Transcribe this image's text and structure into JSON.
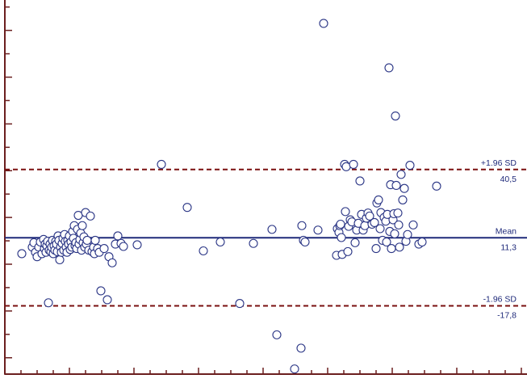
{
  "chart_data": {
    "type": "scatter",
    "title": "",
    "xlabel": "",
    "ylabel": "",
    "ylim": [
      -47,
      113
    ],
    "grid": false,
    "colors": {
      "axis": "#6b1f1f",
      "mean_line": "#1f2a7a",
      "sd_line": "#7a1010",
      "marker": "#2a3585",
      "label": "#1f2a7a"
    },
    "reference_lines": [
      {
        "role": "upper",
        "name": "+1.96 SD",
        "value": 40.5,
        "value_label": "40,5",
        "style": "dashed"
      },
      {
        "role": "mean",
        "name": "Mean",
        "value": 11.3,
        "value_label": "11,3",
        "style": "solid"
      },
      {
        "role": "lower",
        "name": "-1.96 SD",
        "value": -17.8,
        "value_label": "-17,8",
        "style": "dashed"
      }
    ],
    "points": [
      {
        "x": 27,
        "y": 4.5
      },
      {
        "x": 40,
        "y": 7.3
      },
      {
        "x": 42,
        "y": 9.2
      },
      {
        "x": 44,
        "y": 5.1
      },
      {
        "x": 46,
        "y": 3.2
      },
      {
        "x": 48,
        "y": 7.3
      },
      {
        "x": 50,
        "y": 9.5
      },
      {
        "x": 52,
        "y": 4.5
      },
      {
        "x": 54,
        "y": 10.6
      },
      {
        "x": 55,
        "y": 6.7
      },
      {
        "x": 56,
        "y": 8.6
      },
      {
        "x": 57,
        "y": 5.1
      },
      {
        "x": 58,
        "y": 7.9
      },
      {
        "x": 59,
        "y": 9.8
      },
      {
        "x": 60,
        "y": -16.5
      },
      {
        "x": 61,
        "y": 6.0
      },
      {
        "x": 62,
        "y": 8.6
      },
      {
        "x": 63,
        "y": 5.4
      },
      {
        "x": 64,
        "y": 7.3
      },
      {
        "x": 65,
        "y": 10.2
      },
      {
        "x": 66,
        "y": 4.5
      },
      {
        "x": 67,
        "y": 7.9
      },
      {
        "x": 68,
        "y": 6.0
      },
      {
        "x": 69,
        "y": 9.8
      },
      {
        "x": 70,
        "y": 8.6
      },
      {
        "x": 71,
        "y": 5.4
      },
      {
        "x": 72,
        "y": 12.1
      },
      {
        "x": 73,
        "y": 10.2
      },
      {
        "x": 74,
        "y": 1.9
      },
      {
        "x": 75,
        "y": 7.3
      },
      {
        "x": 76,
        "y": 5.1
      },
      {
        "x": 77,
        "y": 8.9
      },
      {
        "x": 78,
        "y": 11.1
      },
      {
        "x": 79,
        "y": 6.0
      },
      {
        "x": 80,
        "y": 12.7
      },
      {
        "x": 81,
        "y": 9.8
      },
      {
        "x": 82,
        "y": 7.3
      },
      {
        "x": 83,
        "y": 5.1
      },
      {
        "x": 84,
        "y": 10.2
      },
      {
        "x": 85,
        "y": 8.6
      },
      {
        "x": 86,
        "y": 12.1
      },
      {
        "x": 87,
        "y": 6.3
      },
      {
        "x": 88,
        "y": 9.5
      },
      {
        "x": 89,
        "y": 7.3
      },
      {
        "x": 90,
        "y": 14.0
      },
      {
        "x": 91,
        "y": 11.1
      },
      {
        "x": 92,
        "y": 16.5
      },
      {
        "x": 93,
        "y": 7.9
      },
      {
        "x": 94,
        "y": 9.2
      },
      {
        "x": 95,
        "y": 6.7
      },
      {
        "x": 96,
        "y": 14.9
      },
      {
        "x": 97,
        "y": 20.9
      },
      {
        "x": 98,
        "y": 8.6
      },
      {
        "x": 99,
        "y": 10.6
      },
      {
        "x": 100,
        "y": 13.3
      },
      {
        "x": 101,
        "y": 6.0
      },
      {
        "x": 102,
        "y": 16.5
      },
      {
        "x": 103,
        "y": 9.2
      },
      {
        "x": 104,
        "y": 11.7
      },
      {
        "x": 105,
        "y": 7.3
      },
      {
        "x": 106,
        "y": 22.1
      },
      {
        "x": 107,
        "y": 8.6
      },
      {
        "x": 108,
        "y": 10.2
      },
      {
        "x": 110,
        "y": 6.0
      },
      {
        "x": 112,
        "y": 20.6
      },
      {
        "x": 114,
        "y": 5.4
      },
      {
        "x": 116,
        "y": 7.3
      },
      {
        "x": 117,
        "y": 4.5
      },
      {
        "x": 118,
        "y": 10.2
      },
      {
        "x": 121,
        "y": 6.7
      },
      {
        "x": 123,
        "y": 5.1
      },
      {
        "x": 125,
        "y": -11.4
      },
      {
        "x": 129,
        "y": 6.7
      },
      {
        "x": 133,
        "y": -15.2
      },
      {
        "x": 135,
        "y": 3.2
      },
      {
        "x": 139,
        "y": 0.6
      },
      {
        "x": 143,
        "y": 8.6
      },
      {
        "x": 146,
        "y": 12.1
      },
      {
        "x": 150,
        "y": 8.9
      },
      {
        "x": 153,
        "y": 7.6
      },
      {
        "x": 170,
        "y": 8.3
      },
      {
        "x": 200,
        "y": 42.7
      },
      {
        "x": 232,
        "y": 24.3
      },
      {
        "x": 252,
        "y": 5.7
      },
      {
        "x": 273,
        "y": 9.5
      },
      {
        "x": 297,
        "y": -16.8
      },
      {
        "x": 314,
        "y": 8.9
      },
      {
        "x": 337,
        "y": 14.9
      },
      {
        "x": 343,
        "y": -30.2
      },
      {
        "x": 365,
        "y": -44.8
      },
      {
        "x": 373,
        "y": -35.9
      },
      {
        "x": 374,
        "y": 16.5
      },
      {
        "x": 376,
        "y": 10.2
      },
      {
        "x": 378,
        "y": 9.5
      },
      {
        "x": 394,
        "y": 14.6
      },
      {
        "x": 401,
        "y": 103.0
      },
      {
        "x": 417,
        "y": 3.8
      },
      {
        "x": 418,
        "y": 15.2
      },
      {
        "x": 420,
        "y": 13.6
      },
      {
        "x": 421,
        "y": 16.5
      },
      {
        "x": 422,
        "y": 17.1
      },
      {
        "x": 423,
        "y": 11.4
      },
      {
        "x": 424,
        "y": 4.2
      },
      {
        "x": 427,
        "y": 42.7
      },
      {
        "x": 428,
        "y": 22.5
      },
      {
        "x": 429,
        "y": 41.7
      },
      {
        "x": 431,
        "y": 5.4
      },
      {
        "x": 432,
        "y": 16.2
      },
      {
        "x": 434,
        "y": 19.0
      },
      {
        "x": 436,
        "y": 18.1
      },
      {
        "x": 438,
        "y": 42.7
      },
      {
        "x": 440,
        "y": 9.2
      },
      {
        "x": 442,
        "y": 14.6
      },
      {
        "x": 444,
        "y": 17.5
      },
      {
        "x": 446,
        "y": 35.6
      },
      {
        "x": 448,
        "y": 21.3
      },
      {
        "x": 450,
        "y": 14.6
      },
      {
        "x": 452,
        "y": 16.5
      },
      {
        "x": 454,
        "y": 19.7
      },
      {
        "x": 456,
        "y": 21.9
      },
      {
        "x": 458,
        "y": 20.6
      },
      {
        "x": 461,
        "y": 17.1
      },
      {
        "x": 464,
        "y": 17.8
      },
      {
        "x": 466,
        "y": 6.7
      },
      {
        "x": 467,
        "y": 26.2
      },
      {
        "x": 469,
        "y": 27.5
      },
      {
        "x": 471,
        "y": 15.2
      },
      {
        "x": 472,
        "y": 22.1
      },
      {
        "x": 474,
        "y": 10.2
      },
      {
        "x": 476,
        "y": 20.0
      },
      {
        "x": 478,
        "y": 18.4
      },
      {
        "x": 479,
        "y": 9.5
      },
      {
        "x": 480,
        "y": 21.3
      },
      {
        "x": 482,
        "y": 84.0
      },
      {
        "x": 483,
        "y": 14.0
      },
      {
        "x": 484,
        "y": 34.0
      },
      {
        "x": 485,
        "y": 6.7
      },
      {
        "x": 487,
        "y": 19.0
      },
      {
        "x": 488,
        "y": 21.6
      },
      {
        "x": 489,
        "y": 13.0
      },
      {
        "x": 490,
        "y": 63.4
      },
      {
        "x": 491,
        "y": 33.7
      },
      {
        "x": 493,
        "y": 21.9
      },
      {
        "x": 494,
        "y": 16.8
      },
      {
        "x": 495,
        "y": 7.3
      },
      {
        "x": 497,
        "y": 38.4
      },
      {
        "x": 499,
        "y": 27.5
      },
      {
        "x": 501,
        "y": 32.4
      },
      {
        "x": 503,
        "y": 9.8
      },
      {
        "x": 505,
        "y": 12.7
      },
      {
        "x": 508,
        "y": 42.3
      },
      {
        "x": 512,
        "y": 16.8
      },
      {
        "x": 519,
        "y": 8.6
      },
      {
        "x": 523,
        "y": 9.5
      },
      {
        "x": 541,
        "y": 33.4
      }
    ]
  }
}
